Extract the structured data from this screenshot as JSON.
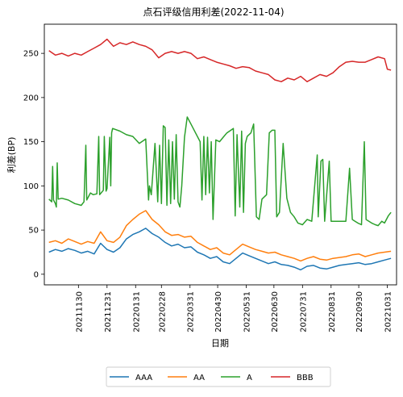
{
  "chart_data": {
    "type": "line",
    "title": "点石评级信用利差(2022-11-04)",
    "xlabel": "日期",
    "ylabel": "利差(BP)",
    "ylim": [
      -12,
      283
    ],
    "xlim": [
      "2021-10-24",
      "2022-11-10"
    ],
    "x_ticks": [
      "20211130",
      "20211231",
      "20220131",
      "20220228",
      "20220331",
      "20220430",
      "20220531",
      "20220630",
      "20220731",
      "20220831",
      "20220930",
      "20221031"
    ],
    "y_ticks": [
      0,
      50,
      100,
      150,
      200,
      250
    ],
    "grid": false,
    "legend_position": "bottom-center, outside plot",
    "series": [
      {
        "name": "AAA",
        "color": "#1f77b4",
        "points": [
          [
            "2021-10-29",
            25
          ],
          [
            "2021-11-05",
            28
          ],
          [
            "2021-11-12",
            26
          ],
          [
            "2021-11-19",
            29
          ],
          [
            "2021-11-26",
            27
          ],
          [
            "2021-12-03",
            24
          ],
          [
            "2021-12-10",
            26
          ],
          [
            "2021-12-17",
            23
          ],
          [
            "2021-12-24",
            35
          ],
          [
            "2021-12-31",
            28
          ],
          [
            "2022-01-07",
            25
          ],
          [
            "2022-01-14",
            30
          ],
          [
            "2022-01-21",
            40
          ],
          [
            "2022-01-28",
            45
          ],
          [
            "2022-02-04",
            48
          ],
          [
            "2022-02-11",
            52
          ],
          [
            "2022-02-18",
            46
          ],
          [
            "2022-02-25",
            42
          ],
          [
            "2022-03-04",
            36
          ],
          [
            "2022-03-11",
            32
          ],
          [
            "2022-03-18",
            34
          ],
          [
            "2022-03-25",
            30
          ],
          [
            "2022-04-01",
            31
          ],
          [
            "2022-04-08",
            25
          ],
          [
            "2022-04-15",
            22
          ],
          [
            "2022-04-22",
            18
          ],
          [
            "2022-04-29",
            20
          ],
          [
            "2022-05-06",
            14
          ],
          [
            "2022-05-13",
            12
          ],
          [
            "2022-05-20",
            18
          ],
          [
            "2022-05-27",
            24
          ],
          [
            "2022-06-03",
            21
          ],
          [
            "2022-06-10",
            18
          ],
          [
            "2022-06-17",
            15
          ],
          [
            "2022-06-24",
            12
          ],
          [
            "2022-07-01",
            14
          ],
          [
            "2022-07-08",
            11
          ],
          [
            "2022-07-15",
            10
          ],
          [
            "2022-07-22",
            8
          ],
          [
            "2022-07-29",
            5
          ],
          [
            "2022-08-05",
            9
          ],
          [
            "2022-08-12",
            10
          ],
          [
            "2022-08-19",
            7
          ],
          [
            "2022-08-26",
            6
          ],
          [
            "2022-09-02",
            8
          ],
          [
            "2022-09-09",
            10
          ],
          [
            "2022-09-16",
            11
          ],
          [
            "2022-09-23",
            12
          ],
          [
            "2022-09-30",
            13
          ],
          [
            "2022-10-07",
            11
          ],
          [
            "2022-10-14",
            12
          ],
          [
            "2022-10-21",
            14
          ],
          [
            "2022-10-28",
            16
          ],
          [
            "2022-11-04",
            18
          ]
        ]
      },
      {
        "name": "AA",
        "color": "#ff7f0e",
        "points": [
          [
            "2021-10-29",
            36
          ],
          [
            "2021-11-05",
            38
          ],
          [
            "2021-11-12",
            35
          ],
          [
            "2021-11-19",
            40
          ],
          [
            "2021-11-26",
            37
          ],
          [
            "2021-12-03",
            34
          ],
          [
            "2021-12-10",
            37
          ],
          [
            "2021-12-17",
            35
          ],
          [
            "2021-12-24",
            48
          ],
          [
            "2021-12-31",
            38
          ],
          [
            "2022-01-07",
            36
          ],
          [
            "2022-01-14",
            42
          ],
          [
            "2022-01-21",
            55
          ],
          [
            "2022-01-28",
            62
          ],
          [
            "2022-02-04",
            68
          ],
          [
            "2022-02-11",
            72
          ],
          [
            "2022-02-18",
            62
          ],
          [
            "2022-02-25",
            56
          ],
          [
            "2022-03-04",
            48
          ],
          [
            "2022-03-11",
            44
          ],
          [
            "2022-03-18",
            45
          ],
          [
            "2022-03-25",
            42
          ],
          [
            "2022-04-01",
            43
          ],
          [
            "2022-04-08",
            36
          ],
          [
            "2022-04-15",
            32
          ],
          [
            "2022-04-22",
            28
          ],
          [
            "2022-04-29",
            30
          ],
          [
            "2022-05-06",
            24
          ],
          [
            "2022-05-13",
            22
          ],
          [
            "2022-05-20",
            28
          ],
          [
            "2022-05-27",
            34
          ],
          [
            "2022-06-03",
            31
          ],
          [
            "2022-06-10",
            28
          ],
          [
            "2022-06-17",
            26
          ],
          [
            "2022-06-24",
            24
          ],
          [
            "2022-07-01",
            25
          ],
          [
            "2022-07-08",
            22
          ],
          [
            "2022-07-15",
            20
          ],
          [
            "2022-07-22",
            18
          ],
          [
            "2022-07-29",
            15
          ],
          [
            "2022-08-05",
            18
          ],
          [
            "2022-08-12",
            20
          ],
          [
            "2022-08-19",
            17
          ],
          [
            "2022-08-26",
            16
          ],
          [
            "2022-09-02",
            18
          ],
          [
            "2022-09-09",
            19
          ],
          [
            "2022-09-16",
            20
          ],
          [
            "2022-09-23",
            22
          ],
          [
            "2022-09-30",
            23
          ],
          [
            "2022-10-07",
            20
          ],
          [
            "2022-10-14",
            22
          ],
          [
            "2022-10-21",
            24
          ],
          [
            "2022-10-28",
            25
          ],
          [
            "2022-11-04",
            26
          ]
        ]
      },
      {
        "name": "A",
        "color": "#2ca02c",
        "points": [
          [
            "2021-10-29",
            85
          ],
          [
            "2021-11-01",
            82
          ],
          [
            "2021-11-02",
            122
          ],
          [
            "2021-11-03",
            84
          ],
          [
            "2021-11-05",
            80
          ],
          [
            "2021-11-06",
            76
          ],
          [
            "2021-11-07",
            126
          ],
          [
            "2021-11-08",
            85
          ],
          [
            "2021-11-12",
            86
          ],
          [
            "2021-11-19",
            84
          ],
          [
            "2021-11-26",
            80
          ],
          [
            "2021-12-03",
            78
          ],
          [
            "2021-12-06",
            82
          ],
          [
            "2021-12-08",
            146
          ],
          [
            "2021-12-09",
            84
          ],
          [
            "2021-12-13",
            92
          ],
          [
            "2021-12-16",
            90
          ],
          [
            "2021-12-20",
            91
          ],
          [
            "2021-12-22",
            156
          ],
          [
            "2021-12-23",
            90
          ],
          [
            "2021-12-27",
            95
          ],
          [
            "2021-12-28",
            156
          ],
          [
            "2021-12-30",
            94
          ],
          [
            "2021-12-31",
            97
          ],
          [
            "2022-01-03",
            155
          ],
          [
            "2022-01-04",
            100
          ],
          [
            "2022-01-05",
            160
          ],
          [
            "2022-01-06",
            165
          ],
          [
            "2022-01-14",
            162
          ],
          [
            "2022-01-21",
            158
          ],
          [
            "2022-01-28",
            156
          ],
          [
            "2022-02-04",
            148
          ],
          [
            "2022-02-11",
            153
          ],
          [
            "2022-02-14",
            84
          ],
          [
            "2022-02-15",
            100
          ],
          [
            "2022-02-17",
            90
          ],
          [
            "2022-02-21",
            148
          ],
          [
            "2022-02-24",
            82
          ],
          [
            "2022-02-26",
            146
          ],
          [
            "2022-02-28",
            80
          ],
          [
            "2022-03-02",
            168
          ],
          [
            "2022-03-04",
            166
          ],
          [
            "2022-03-06",
            78
          ],
          [
            "2022-03-08",
            152
          ],
          [
            "2022-03-10",
            80
          ],
          [
            "2022-03-12",
            150
          ],
          [
            "2022-03-14",
            85
          ],
          [
            "2022-03-16",
            158
          ],
          [
            "2022-03-18",
            82
          ],
          [
            "2022-03-20",
            76
          ],
          [
            "2022-03-22",
            100
          ],
          [
            "2022-03-25",
            155
          ],
          [
            "2022-03-28",
            178
          ],
          [
            "2022-04-01",
            170
          ],
          [
            "2022-04-06",
            160
          ],
          [
            "2022-04-11",
            150
          ],
          [
            "2022-04-13",
            84
          ],
          [
            "2022-04-15",
            156
          ],
          [
            "2022-04-17",
            90
          ],
          [
            "2022-04-19",
            155
          ],
          [
            "2022-04-21",
            92
          ],
          [
            "2022-04-23",
            150
          ],
          [
            "2022-04-25",
            62
          ],
          [
            "2022-04-28",
            152
          ],
          [
            "2022-05-02",
            150
          ],
          [
            "2022-05-06",
            155
          ],
          [
            "2022-05-10",
            160
          ],
          [
            "2022-05-17",
            165
          ],
          [
            "2022-05-19",
            66
          ],
          [
            "2022-05-21",
            158
          ],
          [
            "2022-05-24",
            76
          ],
          [
            "2022-05-26",
            162
          ],
          [
            "2022-05-28",
            70
          ],
          [
            "2022-05-30",
            148
          ],
          [
            "2022-06-01",
            156
          ],
          [
            "2022-06-05",
            160
          ],
          [
            "2022-06-08",
            170
          ],
          [
            "2022-06-11",
            65
          ],
          [
            "2022-06-14",
            62
          ],
          [
            "2022-06-17",
            85
          ],
          [
            "2022-06-22",
            90
          ],
          [
            "2022-06-25",
            160
          ],
          [
            "2022-06-28",
            163
          ],
          [
            "2022-07-01",
            163
          ],
          [
            "2022-07-03",
            65
          ],
          [
            "2022-07-06",
            70
          ],
          [
            "2022-07-10",
            148
          ],
          [
            "2022-07-14",
            86
          ],
          [
            "2022-07-18",
            70
          ],
          [
            "2022-07-22",
            65
          ],
          [
            "2022-07-26",
            58
          ],
          [
            "2022-07-31",
            56
          ],
          [
            "2022-08-05",
            62
          ],
          [
            "2022-08-10",
            60
          ],
          [
            "2022-08-16",
            135
          ],
          [
            "2022-08-17",
            65
          ],
          [
            "2022-08-20",
            128
          ],
          [
            "2022-08-22",
            130
          ],
          [
            "2022-08-24",
            60
          ],
          [
            "2022-08-29",
            128
          ],
          [
            "2022-08-31",
            60
          ],
          [
            "2022-09-04",
            60
          ],
          [
            "2022-09-16",
            60
          ],
          [
            "2022-09-20",
            120
          ],
          [
            "2022-09-23",
            62
          ],
          [
            "2022-09-26",
            60
          ],
          [
            "2022-09-29",
            58
          ],
          [
            "2022-10-03",
            56
          ],
          [
            "2022-10-06",
            150
          ],
          [
            "2022-10-08",
            62
          ],
          [
            "2022-10-11",
            60
          ],
          [
            "2022-10-14",
            58
          ],
          [
            "2022-10-18",
            56
          ],
          [
            "2022-10-21",
            55
          ],
          [
            "2022-10-25",
            60
          ],
          [
            "2022-10-28",
            58
          ],
          [
            "2022-11-01",
            66
          ],
          [
            "2022-11-04",
            70
          ]
        ]
      },
      {
        "name": "BBB",
        "color": "#d62728",
        "points": [
          [
            "2021-10-29",
            253
          ],
          [
            "2021-11-05",
            248
          ],
          [
            "2021-11-12",
            250
          ],
          [
            "2021-11-19",
            247
          ],
          [
            "2021-11-26",
            250
          ],
          [
            "2021-12-03",
            248
          ],
          [
            "2021-12-10",
            252
          ],
          [
            "2021-12-17",
            256
          ],
          [
            "2021-12-24",
            260
          ],
          [
            "2021-12-31",
            266
          ],
          [
            "2022-01-07",
            258
          ],
          [
            "2022-01-14",
            262
          ],
          [
            "2022-01-21",
            260
          ],
          [
            "2022-01-28",
            263
          ],
          [
            "2022-02-04",
            260
          ],
          [
            "2022-02-11",
            258
          ],
          [
            "2022-02-18",
            254
          ],
          [
            "2022-02-25",
            245
          ],
          [
            "2022-03-04",
            250
          ],
          [
            "2022-03-11",
            252
          ],
          [
            "2022-03-18",
            250
          ],
          [
            "2022-03-25",
            252
          ],
          [
            "2022-04-01",
            250
          ],
          [
            "2022-04-08",
            244
          ],
          [
            "2022-04-15",
            246
          ],
          [
            "2022-04-22",
            243
          ],
          [
            "2022-04-29",
            240
          ],
          [
            "2022-05-06",
            238
          ],
          [
            "2022-05-13",
            236
          ],
          [
            "2022-05-20",
            233
          ],
          [
            "2022-05-27",
            235
          ],
          [
            "2022-06-03",
            234
          ],
          [
            "2022-06-10",
            230
          ],
          [
            "2022-06-17",
            228
          ],
          [
            "2022-06-24",
            226
          ],
          [
            "2022-07-01",
            220
          ],
          [
            "2022-07-08",
            218
          ],
          [
            "2022-07-15",
            222
          ],
          [
            "2022-07-22",
            220
          ],
          [
            "2022-07-29",
            224
          ],
          [
            "2022-08-05",
            218
          ],
          [
            "2022-08-12",
            222
          ],
          [
            "2022-08-19",
            226
          ],
          [
            "2022-08-26",
            224
          ],
          [
            "2022-09-02",
            228
          ],
          [
            "2022-09-09",
            235
          ],
          [
            "2022-09-16",
            240
          ],
          [
            "2022-09-23",
            241
          ],
          [
            "2022-09-30",
            240
          ],
          [
            "2022-10-07",
            240
          ],
          [
            "2022-10-14",
            243
          ],
          [
            "2022-10-21",
            246
          ],
          [
            "2022-10-28",
            244
          ],
          [
            "2022-10-31",
            232
          ],
          [
            "2022-11-04",
            231
          ]
        ]
      }
    ]
  }
}
